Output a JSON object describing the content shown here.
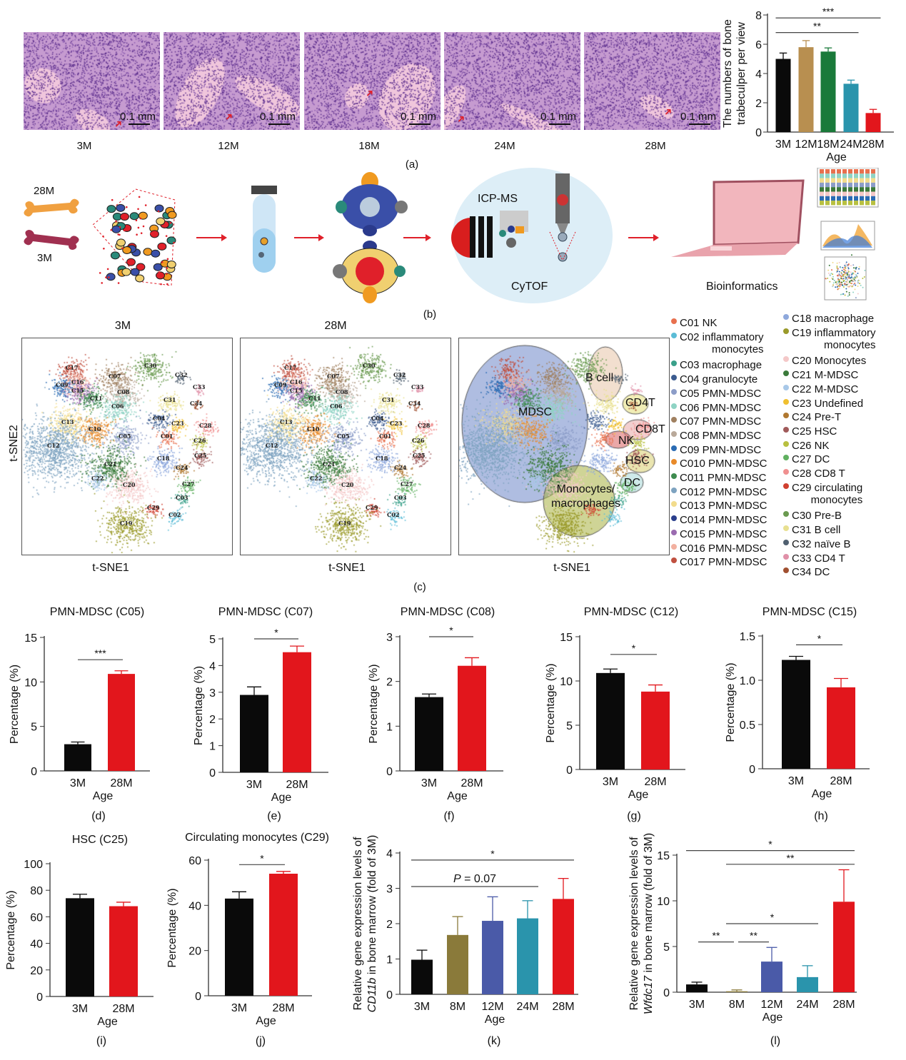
{
  "panel_labels": {
    "a": "(a)",
    "b": "(b)",
    "c": "(c)",
    "d": "(d)",
    "e": "(e)",
    "f": "(f)",
    "g": "(g)",
    "h": "(h)",
    "i": "(i)",
    "j": "(j)",
    "k": "(k)",
    "l": "(l)"
  },
  "histology": {
    "images": [
      {
        "age": "3M"
      },
      {
        "age": "12M"
      },
      {
        "age": "18M"
      },
      {
        "age": "24M"
      },
      {
        "age": "28M"
      }
    ],
    "scale_bar": "0.1 mm",
    "colors": {
      "stain": "#c69bd0",
      "nuclei": "#5b2d8c",
      "bone": "#f0c6dc",
      "arrow": "#e0202a"
    }
  },
  "schematic": {
    "old_label": "28M",
    "young_label": "3M",
    "icpms_label": "ICP-MS",
    "cytof_label": "CyTOF",
    "bioinformatics_label": "Bioinformatics",
    "colors": {
      "arrow": "#e0202a",
      "old_bone": "#f0a040",
      "young_bone": "#a03050"
    }
  },
  "tsne": {
    "titles": [
      "3M",
      "28M",
      ""
    ],
    "xlabel": "t-SNE1",
    "ylabel": "t-SNE2",
    "cluster_labels": [
      "C17",
      "C07",
      "C09",
      "C16",
      "C15",
      "C11",
      "C08",
      "C06",
      "C13",
      "C10",
      "C05",
      "C12",
      "C04",
      "C31",
      "C30",
      "C32",
      "C33",
      "C34",
      "C23",
      "C01",
      "C28",
      "C26",
      "C18",
      "C25",
      "C24",
      "C21",
      "C22",
      "C27",
      "C20",
      "C03",
      "C29",
      "C02",
      "C19"
    ],
    "region_labels": [
      "B cell",
      "MDSC",
      "CD4T",
      "CD8T",
      "NK",
      "HSC",
      "DC",
      "Monocytes/\nmacrophages"
    ],
    "legend": [
      {
        "label": "C01 NK",
        "color": "#e8704e"
      },
      {
        "label": "C02 inflammatory",
        "cont": "monocytes",
        "color": "#5bbcd6"
      },
      {
        "label": "C03 macrophage",
        "color": "#3aa08a"
      },
      {
        "label": "C04 granulocyte",
        "color": "#3b5b8f"
      },
      {
        "label": "C05 PMN-MDSC",
        "color": "#8c9dc8"
      },
      {
        "label": "C06 PMN-MDSC",
        "color": "#8fd3c4"
      },
      {
        "label": "C07 PMN-MDSC",
        "color": "#a08060"
      },
      {
        "label": "C08 PMN-MDSC",
        "color": "#b9a99a"
      },
      {
        "label": "C09 PMN-MDSC",
        "color": "#2a6bb3"
      },
      {
        "label": "C010 PMN-MDSC",
        "color": "#e88a2a"
      },
      {
        "label": "C011 PMN-MDSC",
        "color": "#3e8b4f"
      },
      {
        "label": "C012 PMN-MDSC",
        "color": "#7ea3c0"
      },
      {
        "label": "C013 PMN-MDSC",
        "color": "#f2dc8c"
      },
      {
        "label": "C014 PMN-MDSC",
        "color": "#2a3e8c"
      },
      {
        "label": "C015 PMN-MDSC",
        "color": "#9a6bb0"
      },
      {
        "label": "C016 PMN-MDSC",
        "color": "#f2b0a0"
      },
      {
        "label": "C017 PMN-MDSC",
        "color": "#c05040"
      },
      {
        "label": "C18 macrophage",
        "color": "#8ea8dc"
      },
      {
        "label": "C19 inflammatory",
        "cont": "monocytes",
        "color": "#9a9a2a"
      },
      {
        "label": "C20 Monocytes",
        "color": "#f4c8c8"
      },
      {
        "label": "C21 M-MDSC",
        "color": "#3a7a3a"
      },
      {
        "label": "C22 M-MDSC",
        "color": "#a8c8e8"
      },
      {
        "label": "C23 Undefined",
        "color": "#f0c030"
      },
      {
        "label": "C24 Pre-T",
        "color": "#b07830"
      },
      {
        "label": "C25 HSC",
        "color": "#a05a5a"
      },
      {
        "label": "C26 NK",
        "color": "#b8c040"
      },
      {
        "label": "C27 DC",
        "color": "#60b060"
      },
      {
        "label": "C28 CD8 T",
        "color": "#f09090"
      },
      {
        "label": "C29 circulating",
        "cont": "monocytes",
        "color": "#d04030"
      },
      {
        "label": "C30 Pre-B",
        "color": "#6a9a50"
      },
      {
        "label": "C31 B cell",
        "color": "#e8e090"
      },
      {
        "label": "C32 naïve B",
        "color": "#506070"
      },
      {
        "label": "C33 CD4 T",
        "color": "#e090a8"
      },
      {
        "label": "C34 DC",
        "color": "#a05030"
      }
    ]
  },
  "chart_data": [
    {
      "id": "a",
      "type": "bar",
      "title": "",
      "xlabel": "Age",
      "ylabel": [
        "The numbers of bone",
        "trabeculper per view"
      ],
      "categories": [
        "3M",
        "12M",
        "18M",
        "24M",
        "28M"
      ],
      "values": [
        5.0,
        5.8,
        5.5,
        3.3,
        1.3
      ],
      "errors": [
        0.4,
        0.45,
        0.25,
        0.25,
        0.25
      ],
      "colors": [
        "#0a0a0a",
        "#b88f50",
        "#1a7a3a",
        "#2a94ac",
        "#e2161c"
      ],
      "ylim": [
        0,
        8
      ],
      "yticks": [
        0,
        2,
        4,
        6,
        8
      ],
      "significance": [
        {
          "from": 0,
          "to": 4,
          "label": "***",
          "y": 7.8
        },
        {
          "from": 0,
          "to": 3,
          "label": "**",
          "y": 6.8
        }
      ]
    },
    {
      "id": "d",
      "type": "bar",
      "title": "PMN-MDSC (C05)",
      "xlabel": "Age",
      "ylabel": [
        "Percentage (%)"
      ],
      "categories": [
        "3M",
        "28M"
      ],
      "values": [
        3.0,
        10.9
      ],
      "errors": [
        0.25,
        0.35
      ],
      "colors": [
        "#0a0a0a",
        "#e2161c"
      ],
      "ylim": [
        0,
        15
      ],
      "yticks": [
        0,
        5,
        10,
        15
      ],
      "significance": [
        {
          "from": 0,
          "to": 1,
          "label": "***",
          "y": 12.5
        }
      ]
    },
    {
      "id": "e",
      "type": "bar",
      "title": "PMN-MDSC (C07)",
      "xlabel": "Age",
      "ylabel": [
        "Percentage (%)"
      ],
      "categories": [
        "3M",
        "28M"
      ],
      "values": [
        2.9,
        4.5
      ],
      "errors": [
        0.3,
        0.23
      ],
      "colors": [
        "#0a0a0a",
        "#e2161c"
      ],
      "ylim": [
        0,
        5
      ],
      "yticks": [
        0,
        1,
        2,
        3,
        4,
        5
      ],
      "significance": [
        {
          "from": 0,
          "to": 1,
          "label": "*",
          "y": 5.0
        }
      ]
    },
    {
      "id": "f",
      "type": "bar",
      "title": "PMN-MDSC (C08)",
      "xlabel": "Age",
      "ylabel": [
        "Percentage (%)"
      ],
      "categories": [
        "3M",
        "28M"
      ],
      "values": [
        1.65,
        2.35
      ],
      "errors": [
        0.07,
        0.18
      ],
      "colors": [
        "#0a0a0a",
        "#e2161c"
      ],
      "ylim": [
        0,
        3
      ],
      "yticks": [
        0,
        1,
        2,
        3
      ],
      "significance": [
        {
          "from": 0,
          "to": 1,
          "label": "*",
          "y": 3.0
        }
      ]
    },
    {
      "id": "g",
      "type": "bar",
      "title": "PMN-MDSC (C12)",
      "xlabel": "Age",
      "ylabel": [
        "Percentage (%)"
      ],
      "categories": [
        "3M",
        "28M"
      ],
      "values": [
        10.9,
        8.8
      ],
      "errors": [
        0.45,
        0.75
      ],
      "colors": [
        "#0a0a0a",
        "#e2161c"
      ],
      "ylim": [
        0,
        15
      ],
      "yticks": [
        0,
        5,
        10,
        15
      ],
      "significance": [
        {
          "from": 0,
          "to": 1,
          "label": "*",
          "y": 13.0
        }
      ]
    },
    {
      "id": "h",
      "type": "bar",
      "title": "PMN-MDSC (C15)",
      "xlabel": "Age",
      "ylabel": [
        "Percentage (%)"
      ],
      "categories": [
        "3M",
        "28M"
      ],
      "values": [
        1.23,
        0.92
      ],
      "errors": [
        0.04,
        0.1
      ],
      "colors": [
        "#0a0a0a",
        "#e2161c"
      ],
      "ylim": [
        0,
        1.5
      ],
      "yticks": [
        0,
        0.5,
        1.0,
        1.5
      ],
      "ytick_labels": [
        "0",
        "0.5",
        "1.0",
        "1.5"
      ],
      "significance": [
        {
          "from": 0,
          "to": 1,
          "label": "*",
          "y": 1.4
        }
      ]
    },
    {
      "id": "i",
      "type": "bar",
      "title": "HSC (C25)",
      "xlabel": "Age",
      "ylabel": [
        "Percentage (%)"
      ],
      "categories": [
        "3M",
        "28M"
      ],
      "values": [
        74,
        68
      ],
      "errors": [
        3,
        3
      ],
      "colors": [
        "#0a0a0a",
        "#e2161c"
      ],
      "ylim": [
        0,
        100
      ],
      "yticks": [
        0,
        20,
        40,
        60,
        80,
        100
      ],
      "significance": []
    },
    {
      "id": "j",
      "type": "bar",
      "title": "Circulating   monocytes (C29)",
      "xlabel": "Age",
      "ylabel": [
        "Percentage (%)"
      ],
      "categories": [
        "3M",
        "28M"
      ],
      "values": [
        43,
        54
      ],
      "errors": [
        3,
        1
      ],
      "colors": [
        "#0a0a0a",
        "#e2161c"
      ],
      "ylim": [
        0,
        60
      ],
      "yticks": [
        0,
        20,
        40,
        60
      ],
      "significance": [
        {
          "from": 0,
          "to": 1,
          "label": "*",
          "y": 58
        }
      ]
    },
    {
      "id": "k",
      "type": "bar",
      "title": "",
      "xlabel": "Age",
      "ylabel": [
        "Relative gene expression levels of",
        "CD11b in bone marrow (fold of 3M)"
      ],
      "gene": "CD11b",
      "categories": [
        "3M",
        "8M",
        "12M",
        "24M",
        "28M"
      ],
      "values": [
        0.98,
        1.68,
        2.08,
        2.15,
        2.7
      ],
      "errors": [
        0.27,
        0.52,
        0.68,
        0.5,
        0.58
      ],
      "colors": [
        "#0a0a0a",
        "#8a7a3a",
        "#4a5aa8",
        "#2a94ac",
        "#e2161c"
      ],
      "ylim": [
        0,
        4
      ],
      "yticks": [
        0,
        1,
        2,
        3,
        4
      ],
      "significance": [
        {
          "from": 0,
          "to": 4,
          "label": "*",
          "y": 3.8
        },
        {
          "from": 0,
          "to": 3,
          "label": "P = 0.07",
          "y": 3.05
        }
      ]
    },
    {
      "id": "l",
      "type": "bar",
      "title": "",
      "xlabel": "Age",
      "ylabel": [
        "Relative gene expression levels of",
        "Wfdc17 in bone marrow (fold of 3M)"
      ],
      "gene": "Wfdc17",
      "categories": [
        "3M",
        "8M",
        "12M",
        "24M",
        "28M"
      ],
      "values": [
        0.85,
        0.1,
        3.35,
        1.65,
        9.9
      ],
      "errors": [
        0.25,
        0.15,
        1.55,
        1.25,
        3.5
      ],
      "colors": [
        "#0a0a0a",
        "#8a7a3a",
        "#4a5aa8",
        "#2a94ac",
        "#e2161c"
      ],
      "ylim": [
        0,
        15
      ],
      "yticks": [
        0,
        5,
        10,
        15
      ],
      "significance": [
        {
          "from": 0,
          "to": 4,
          "label": "*",
          "y": 15.5
        },
        {
          "from": 1,
          "to": 4,
          "label": "**",
          "y": 14.0
        },
        {
          "from": 1,
          "to": 3,
          "label": "*",
          "y": 7.5
        },
        {
          "from": 0,
          "to": 1,
          "label": "**",
          "y": 5.5,
          "short": true
        },
        {
          "from": 1,
          "to": 2,
          "label": "**",
          "y": 5.5,
          "short": true
        }
      ]
    }
  ]
}
